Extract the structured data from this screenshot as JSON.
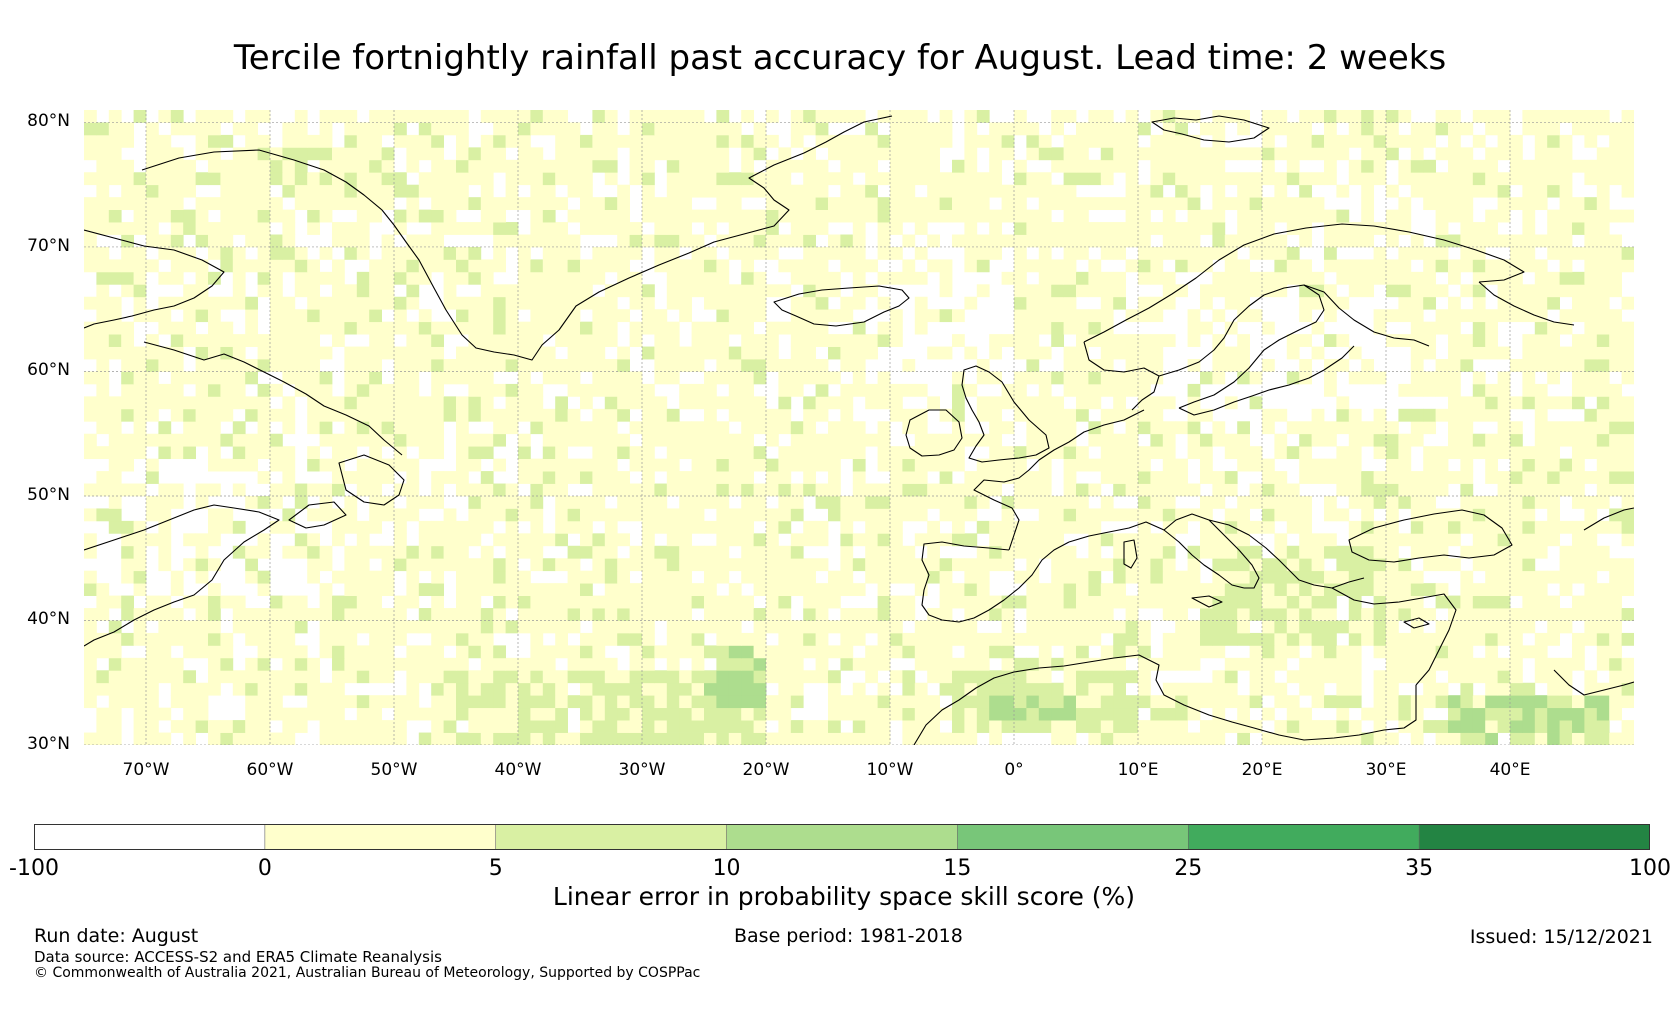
{
  "title": "Tercile fortnightly rainfall past accuracy for August. Lead time: 2 weeks",
  "map": {
    "projection": "PlateCarree",
    "lon_range": [
      -75,
      50
    ],
    "lat_range": [
      30,
      81
    ],
    "gridlines": true,
    "lat_ticks": [
      {
        "value": 80,
        "label": "80°N"
      },
      {
        "value": 70,
        "label": "70°N"
      },
      {
        "value": 60,
        "label": "60°N"
      },
      {
        "value": 50,
        "label": "50°N"
      },
      {
        "value": 40,
        "label": "40°N"
      },
      {
        "value": 30,
        "label": "30°N"
      }
    ],
    "lon_ticks": [
      {
        "value": -70,
        "label": "70°W"
      },
      {
        "value": -60,
        "label": "60°W"
      },
      {
        "value": -50,
        "label": "50°W"
      },
      {
        "value": -40,
        "label": "40°W"
      },
      {
        "value": -30,
        "label": "30°W"
      },
      {
        "value": -20,
        "label": "20°W"
      },
      {
        "value": -10,
        "label": "10°W"
      },
      {
        "value": 0,
        "label": "0°"
      },
      {
        "value": 10,
        "label": "10°E"
      },
      {
        "value": 20,
        "label": "20°E"
      },
      {
        "value": 30,
        "label": "30°E"
      },
      {
        "value": 40,
        "label": "40°E"
      }
    ],
    "regions_of_higher_skill": [
      {
        "lon": [
          -45,
          -20
        ],
        "lat": [
          30,
          36
        ],
        "category": "5-10"
      },
      {
        "lon": [
          -25,
          -20
        ],
        "lat": [
          33,
          38
        ],
        "category": "10-15"
      },
      {
        "lon": [
          -5,
          10
        ],
        "lat": [
          31,
          36
        ],
        "category": "5-10"
      },
      {
        "lon": [
          -2,
          5
        ],
        "lat": [
          32,
          34
        ],
        "category": "10-15"
      },
      {
        "lon": [
          35,
          48
        ],
        "lat": [
          30,
          34
        ],
        "category": "10-15"
      },
      {
        "lon": [
          -60,
          -50
        ],
        "lat": [
          75,
          78
        ],
        "category": "5-10"
      },
      {
        "lon": [
          15,
          30
        ],
        "lat": [
          38,
          46
        ],
        "category": "5-10"
      }
    ],
    "regions_near_zero": [
      {
        "lon": [
          -12,
          0
        ],
        "lat": [
          58,
          72
        ]
      },
      {
        "lon": [
          -75,
          -55
        ],
        "lat": [
          42,
          52
        ]
      },
      {
        "lon": [
          12,
          32
        ],
        "lat": [
          56,
          66
        ]
      }
    ],
    "place_names": []
  },
  "colorbar": {
    "boundaries": [
      "-100",
      "0",
      "5",
      "10",
      "15",
      "25",
      "35",
      "100"
    ],
    "colors": [
      "#ffffff",
      "#ffffcc",
      "#d9f0a3",
      "#addd8e",
      "#78c679",
      "#41ab5d",
      "#238443"
    ],
    "label": "Linear error in probability space skill score (%)"
  },
  "footer": {
    "run_date": "Run date: August",
    "base_period": "Base period: 1981-2018",
    "issued": "Issued: 15/12/2021",
    "data_source": "Data source: ACCESS-S2 and ERA5 Climate Reanalysis",
    "copyright": "© Commonwealth of Australia 2021, Australian Bureau of Meteorology, Supported by COSPPac"
  }
}
